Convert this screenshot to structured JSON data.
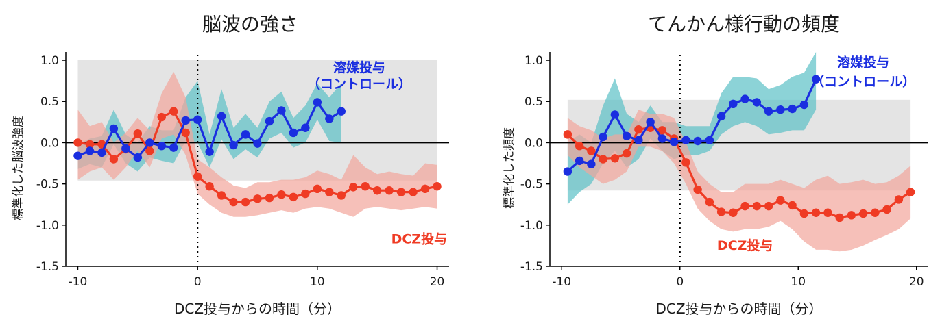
{
  "chart_data": [
    {
      "type": "line",
      "title": "脳波の強さ",
      "xlabel": "DCZ投与からの時間（分）",
      "ylabel": "標準化した脳波強度",
      "xlim": [
        -11,
        21
      ],
      "ylim": [
        -1.5,
        1.05
      ],
      "xticks": [
        -10,
        0,
        10,
        20
      ],
      "yticks": [
        1.0,
        0.5,
        0.0,
        -0.5,
        -1.0,
        -1.5
      ],
      "reference_band": {
        "x": [
          -10,
          20
        ],
        "y": [
          -0.46,
          1.0
        ],
        "color": "#e4e4e4"
      },
      "zero_line": 0,
      "event_line_x": 0,
      "series": [
        {
          "name": "溶媒投与\n（コントロール）",
          "color": "#1a2ee0",
          "band_color": "#5bc0c6",
          "x": [
            -10,
            -9,
            -8,
            -7,
            -6,
            -5,
            -4,
            -3,
            -2,
            -1,
            0,
            1,
            2,
            3,
            4,
            5,
            6,
            7,
            8,
            9,
            10,
            11,
            12
          ],
          "y": [
            -0.16,
            -0.1,
            -0.12,
            0.17,
            -0.07,
            -0.18,
            0.0,
            -0.04,
            -0.06,
            0.27,
            0.28,
            -0.11,
            0.32,
            -0.03,
            0.1,
            -0.01,
            0.26,
            0.39,
            0.12,
            0.18,
            0.49,
            0.29,
            0.38
          ],
          "lower": [
            -0.32,
            -0.26,
            -0.3,
            -0.02,
            -0.25,
            -0.35,
            -0.18,
            -0.22,
            -0.25,
            0.02,
            0.0,
            -0.3,
            0.04,
            -0.2,
            -0.08,
            -0.18,
            0.05,
            0.12,
            -0.06,
            0.0,
            0.28,
            0.02,
            0.0
          ],
          "upper": [
            -0.02,
            0.05,
            0.08,
            0.4,
            0.1,
            0.0,
            0.2,
            0.15,
            0.15,
            0.55,
            0.75,
            0.1,
            0.65,
            0.18,
            0.35,
            0.18,
            0.5,
            0.62,
            0.3,
            0.45,
            0.72,
            0.55,
            0.72
          ]
        },
        {
          "name": "DCZ投与",
          "color": "#ef3b24",
          "band_color": "#f2a59b",
          "x": [
            -10,
            -9,
            -8,
            -7,
            -6,
            -5,
            -4,
            -3,
            -2,
            -1,
            0,
            1,
            2,
            3,
            4,
            5,
            6,
            7,
            8,
            9,
            10,
            11,
            12,
            13,
            14,
            15,
            16,
            17,
            18,
            19,
            20
          ],
          "y": [
            0.0,
            -0.02,
            -0.02,
            -0.2,
            -0.08,
            0.11,
            -0.1,
            0.31,
            0.38,
            0.12,
            -0.41,
            -0.53,
            -0.64,
            -0.72,
            -0.72,
            -0.68,
            -0.67,
            -0.63,
            -0.66,
            -0.62,
            -0.56,
            -0.6,
            -0.64,
            -0.54,
            -0.53,
            -0.58,
            -0.58,
            -0.6,
            -0.6,
            -0.56,
            -0.53
          ],
          "lower": [
            -0.45,
            -0.35,
            -0.3,
            -0.45,
            -0.3,
            -0.1,
            -0.3,
            0.05,
            0.1,
            -0.15,
            -0.62,
            -0.75,
            -0.85,
            -0.9,
            -0.9,
            -0.88,
            -0.85,
            -0.82,
            -0.85,
            -0.8,
            -0.78,
            -0.8,
            -0.85,
            -0.9,
            -0.8,
            -0.78,
            -0.8,
            -0.82,
            -0.8,
            -0.78,
            -0.8
          ],
          "upper": [
            0.4,
            0.2,
            0.25,
            0.0,
            0.12,
            0.3,
            0.15,
            0.6,
            0.86,
            0.55,
            -0.2,
            -0.3,
            -0.42,
            -0.52,
            -0.55,
            -0.48,
            -0.48,
            -0.45,
            -0.45,
            -0.42,
            -0.34,
            -0.38,
            -0.45,
            -0.15,
            -0.3,
            -0.38,
            -0.35,
            -0.38,
            -0.4,
            -0.25,
            -0.27
          ]
        }
      ],
      "annotations": [
        {
          "text": "溶媒投与",
          "color": "#1a2ee0",
          "x": 13.5,
          "y": 0.86
        },
        {
          "text": "（コントロール）",
          "color": "#1a2ee0",
          "x": 13.5,
          "y": 0.66
        },
        {
          "text": "DCZ投与",
          "color": "#ef3b24",
          "x": 18.5,
          "y": -1.22
        }
      ]
    },
    {
      "type": "line",
      "title": "てんかん様行動の頻度",
      "xlabel": "DCZ投与からの時間（分）",
      "ylabel": "標準化した頻度",
      "xlim": [
        -11,
        21
      ],
      "ylim": [
        -1.5,
        1.05
      ],
      "xticks": [
        -10,
        0,
        10,
        20
      ],
      "yticks": [
        1.0,
        0.5,
        0.0,
        -0.5,
        -1.0,
        -1.5
      ],
      "reference_band": {
        "x": [
          -9.5,
          19.5
        ],
        "y": [
          -0.58,
          0.52
        ],
        "color": "#e4e4e4"
      },
      "zero_line": 0,
      "event_line_x": 0,
      "series": [
        {
          "name": "溶媒投与\n（コントロール）",
          "color": "#1a2ee0",
          "band_color": "#5bc0c6",
          "x": [
            -9.5,
            -8.5,
            -7.5,
            -6.5,
            -5.5,
            -4.5,
            -3.5,
            -2.5,
            -1.5,
            -0.5,
            0.5,
            1.5,
            2.5,
            3.5,
            4.5,
            5.5,
            6.5,
            7.5,
            8.5,
            9.5,
            10.5,
            11.5
          ],
          "y": [
            -0.35,
            -0.22,
            -0.26,
            0.07,
            0.34,
            0.08,
            0.03,
            0.25,
            0.05,
            0.01,
            0.03,
            0.02,
            0.03,
            0.32,
            0.47,
            0.53,
            0.49,
            0.38,
            0.4,
            0.41,
            0.46,
            0.77
          ],
          "lower": [
            -0.75,
            -0.6,
            -0.5,
            -0.25,
            -0.1,
            -0.3,
            -0.2,
            0.05,
            -0.1,
            -0.2,
            -0.15,
            -0.15,
            -0.1,
            0.1,
            0.2,
            0.25,
            0.2,
            0.1,
            0.12,
            0.15,
            0.15,
            0.4
          ],
          "upper": [
            0.0,
            0.1,
            0.0,
            0.45,
            0.78,
            0.35,
            0.25,
            0.45,
            0.25,
            0.25,
            0.2,
            0.2,
            0.2,
            0.6,
            0.8,
            0.8,
            0.78,
            0.65,
            0.7,
            0.8,
            0.85,
            1.1
          ]
        },
        {
          "name": "DCZ投与",
          "color": "#ef3b24",
          "band_color": "#f2a59b",
          "x": [
            -9.5,
            -8.5,
            -7.5,
            -6.5,
            -5.5,
            -4.5,
            -3.5,
            -2.5,
            -1.5,
            -0.5,
            0.5,
            1.5,
            2.5,
            3.5,
            4.5,
            5.5,
            6.5,
            7.5,
            8.5,
            9.5,
            10.5,
            11.5,
            12.5,
            13.5,
            14.5,
            15.5,
            16.5,
            17.5,
            18.5,
            19.5
          ],
          "y": [
            0.1,
            -0.04,
            -0.1,
            -0.2,
            -0.19,
            -0.13,
            0.16,
            0.18,
            0.15,
            0.05,
            -0.24,
            -0.57,
            -0.72,
            -0.84,
            -0.85,
            -0.77,
            -0.77,
            -0.77,
            -0.7,
            -0.76,
            -0.86,
            -0.85,
            -0.85,
            -0.91,
            -0.88,
            -0.86,
            -0.85,
            -0.81,
            -0.69,
            -0.6
          ],
          "lower": [
            -0.15,
            -0.3,
            -0.4,
            -0.5,
            -0.45,
            -0.35,
            -0.05,
            -0.05,
            -0.1,
            -0.25,
            -0.5,
            -0.8,
            -0.95,
            -1.05,
            -1.08,
            -1.05,
            -1.05,
            -1.02,
            -0.95,
            -1.05,
            -1.2,
            -1.3,
            -1.3,
            -1.32,
            -1.3,
            -1.25,
            -1.18,
            -1.12,
            -1.05,
            -0.92
          ],
          "upper": [
            0.3,
            0.2,
            0.15,
            0.05,
            0.1,
            0.1,
            0.4,
            0.35,
            0.35,
            0.3,
            0.0,
            -0.35,
            -0.5,
            -0.6,
            -0.6,
            -0.5,
            -0.5,
            -0.5,
            -0.45,
            -0.5,
            -0.55,
            -0.45,
            -0.4,
            -0.5,
            -0.48,
            -0.45,
            -0.5,
            -0.48,
            -0.4,
            -0.28
          ]
        }
      ],
      "annotations": [
        {
          "text": "溶媒投与",
          "color": "#1a2ee0",
          "x": 15.5,
          "y": 0.92
        },
        {
          "text": "（コントロール）",
          "color": "#1a2ee0",
          "x": 15.5,
          "y": 0.69
        },
        {
          "text": "DCZ投与",
          "color": "#ef3b24",
          "x": 5.5,
          "y": -1.3
        }
      ]
    }
  ]
}
